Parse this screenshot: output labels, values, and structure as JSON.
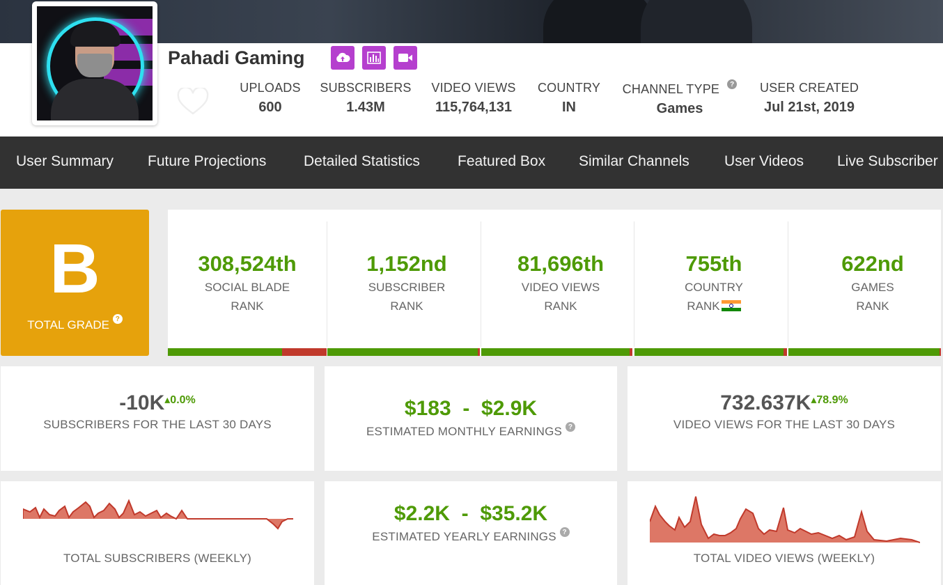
{
  "channel": {
    "name": "Pahadi Gaming",
    "stats": [
      {
        "label": "UPLOADS",
        "value": "600"
      },
      {
        "label": "SUBSCRIBERS",
        "value": "1.43M"
      },
      {
        "label": "VIDEO VIEWS",
        "value": "115,764,131"
      },
      {
        "label": "COUNTRY",
        "value": "IN"
      },
      {
        "label": "CHANNEL TYPE",
        "value": "Games"
      },
      {
        "label": "USER CREATED",
        "value": "Jul 21st, 2019"
      }
    ],
    "action_icons": [
      "upload-cloud-icon",
      "bar-chart-icon",
      "video-camera-icon"
    ],
    "accent_color": "#b53fce"
  },
  "nav": {
    "items": [
      "User Summary",
      "Future Projections",
      "Detailed Statistics",
      "Featured Box",
      "Similar Channels",
      "User Videos",
      "Live Subscriber"
    ]
  },
  "grade": {
    "letter": "B",
    "label": "TOTAL GRADE",
    "color": "#e6a20c"
  },
  "ranks": [
    {
      "value": "308,524th",
      "line1": "SOCIAL BLADE",
      "line2": "RANK",
      "bar_fraction": 0.72
    },
    {
      "value": "1,152nd",
      "line1": "SUBSCRIBER",
      "line2": "RANK",
      "bar_fraction": 0.985
    },
    {
      "value": "81,696th",
      "line1": "VIDEO VIEWS",
      "line2": "RANK",
      "bar_fraction": 0.98
    },
    {
      "value": "755th",
      "line1": "COUNTRY",
      "line2": "RANK",
      "bar_fraction": 0.975
    },
    {
      "value": "622nd",
      "line1": "GAMES",
      "line2": "RANK",
      "bar_fraction": 0.99
    }
  ],
  "summary": {
    "subs_30": {
      "value": "-10K",
      "change": "0.0%",
      "label": "SUBSCRIBERS FOR THE LAST 30 DAYS"
    },
    "monthly": {
      "low": "$183",
      "sep": "-",
      "high": "$2.9K",
      "label": "ESTIMATED MONTHLY EARNINGS"
    },
    "views_30": {
      "value": "732.637K",
      "change": "78.9%",
      "label": "VIDEO VIEWS FOR THE LAST 30 DAYS"
    },
    "subs_weekly_label": "TOTAL SUBSCRIBERS (WEEKLY)",
    "yearly": {
      "low": "$2.2K",
      "sep": "-",
      "high": "$35.2K",
      "label": "ESTIMATED YEARLY EARNINGS"
    },
    "views_weekly_label": "TOTAL VIDEO VIEWS (WEEKLY)"
  },
  "colors": {
    "positive": "#4e9a06",
    "negative": "#c0392b",
    "spark_fill": "#dd7766",
    "spark_line": "#c0392b"
  }
}
